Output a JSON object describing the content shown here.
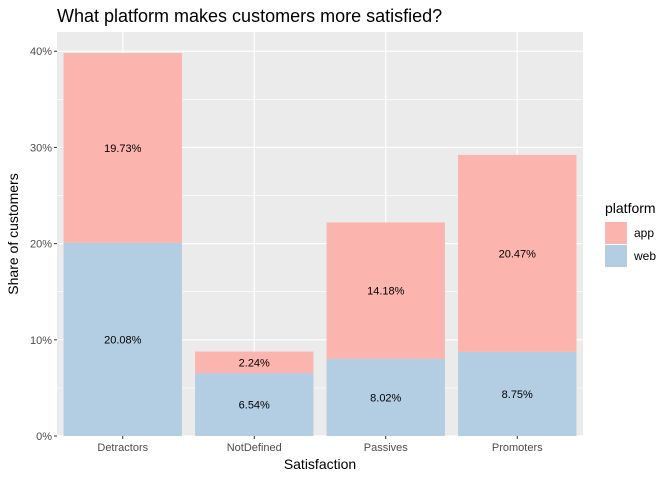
{
  "chart_data": {
    "type": "bar",
    "stacked": true,
    "title": "What platform makes customers more satisfied?",
    "xlabel": "Satisfaction",
    "ylabel": "Share of customers",
    "categories": [
      "Detractors",
      "NotDefined",
      "Passives",
      "Promoters"
    ],
    "series": [
      {
        "name": "web",
        "color": "#b3cde3",
        "values": [
          20.08,
          6.54,
          8.02,
          8.75
        ],
        "labels": [
          "20.08%",
          "6.54%",
          "8.02%",
          "8.75%"
        ]
      },
      {
        "name": "app",
        "color": "#fbb4ae",
        "values": [
          19.73,
          2.24,
          14.18,
          20.47
        ],
        "labels": [
          "19.73%",
          "2.24%",
          "14.18%",
          "20.47%"
        ]
      }
    ],
    "ylim": [
      0,
      42
    ],
    "yticks": [
      0,
      10,
      20,
      30,
      40
    ],
    "ytick_labels": [
      "0%",
      "10%",
      "20%",
      "30%",
      "40%"
    ],
    "grid": true,
    "panel_background": "#ebebeb",
    "legend": {
      "title": "platform",
      "position": "right",
      "entries": [
        {
          "label": "app",
          "color": "#fbb4ae"
        },
        {
          "label": "web",
          "color": "#b3cde3"
        }
      ]
    }
  }
}
